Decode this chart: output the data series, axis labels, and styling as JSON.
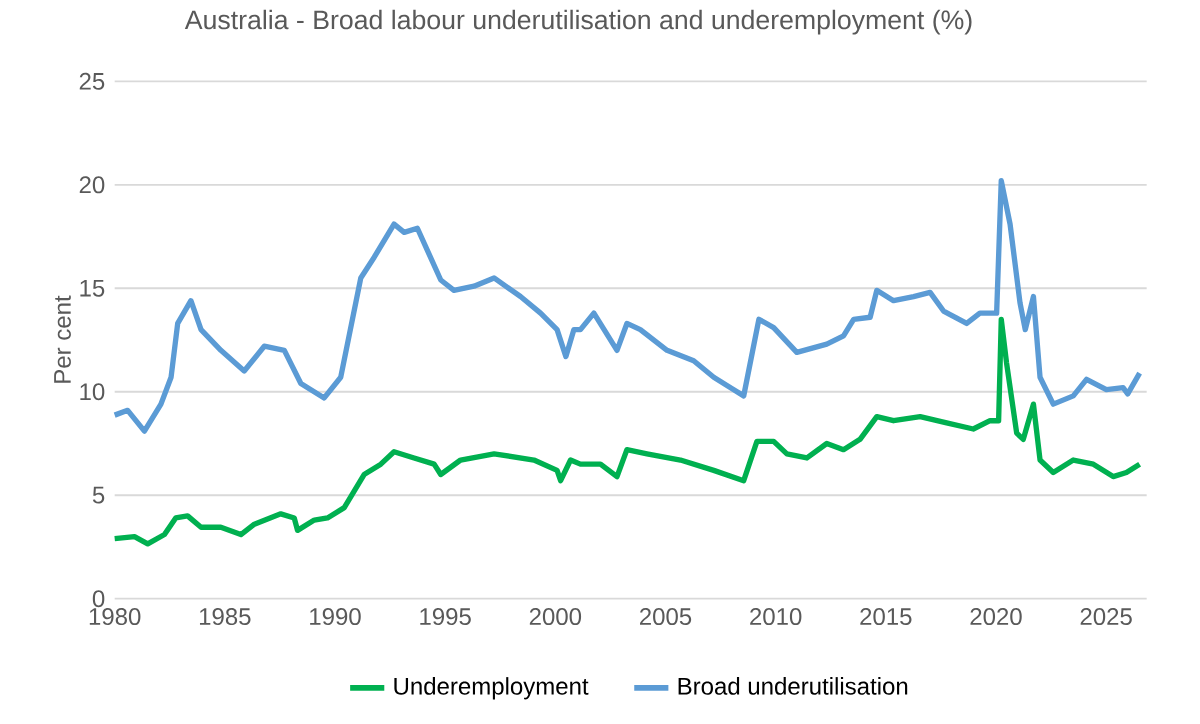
{
  "chart_data": {
    "type": "line",
    "title": "Australia - Broad labour underutilisation and underemployment (%)",
    "ylabel": "Per cent",
    "xlim": [
      1980,
      2026.84
    ],
    "xticks": [
      1980,
      1985,
      1990,
      1995,
      2000,
      2005,
      2010,
      2015,
      2020,
      2025
    ],
    "ylim": [
      0,
      25
    ],
    "yticks": [
      0,
      5,
      10,
      15,
      20,
      25
    ],
    "grid": "y",
    "legend": "bottom",
    "marker": "none",
    "line_style": "solid",
    "series": [
      {
        "name": "Underemployment",
        "color": "#00b050",
        "x": [
          1980.0,
          1980.9,
          1981.5,
          1982.26,
          1982.77,
          1983.31,
          1983.92,
          1984.82,
          1985.73,
          1986.34,
          1987.54,
          1988.15,
          1988.3,
          1989.06,
          1989.66,
          1990.42,
          1990.87,
          1991.32,
          1992.08,
          1992.68,
          1993.59,
          1994.5,
          1994.8,
          1995.7,
          1997.22,
          1999.03,
          2000.08,
          2000.24,
          2000.69,
          2001.14,
          2002.05,
          2002.8,
          2003.25,
          2004.16,
          2005.68,
          2007.19,
          2008.55,
          2009.15,
          2009.91,
          2010.51,
          2011.42,
          2012.32,
          2013.08,
          2013.83,
          2014.59,
          2015.35,
          2016.56,
          2017.76,
          2018.97,
          2019.73,
          2020.12,
          2020.24,
          2020.48,
          2020.94,
          2021.24,
          2021.7,
          2022.0,
          2022.6,
          2023.51,
          2024.42,
          2025.32,
          2025.92,
          2026.52
        ],
        "values": [
          2.9,
          3.0,
          2.65,
          3.1,
          3.9,
          4.0,
          3.45,
          3.45,
          3.1,
          3.6,
          4.1,
          3.9,
          3.3,
          3.8,
          3.9,
          4.4,
          5.2,
          6.0,
          6.5,
          7.1,
          6.8,
          6.5,
          6.0,
          6.7,
          7.0,
          6.7,
          6.2,
          5.7,
          6.7,
          6.5,
          6.5,
          5.9,
          7.2,
          7.0,
          6.7,
          6.2,
          5.7,
          7.6,
          7.6,
          7.0,
          6.8,
          7.5,
          7.2,
          7.7,
          8.8,
          8.6,
          8.8,
          8.5,
          8.2,
          8.6,
          8.6,
          13.5,
          11.4,
          8.0,
          7.7,
          9.4,
          6.7,
          6.1,
          6.7,
          6.5,
          5.9,
          6.1,
          6.5
        ]
      },
      {
        "name": "Broad underutilisation",
        "color": "#5b9bd5",
        "x": [
          1980.0,
          1980.59,
          1981.35,
          1982.1,
          1982.56,
          1982.86,
          1983.46,
          1983.92,
          1984.82,
          1985.88,
          1986.79,
          1987.7,
          1988.45,
          1989.51,
          1990.26,
          1991.17,
          1991.78,
          1992.68,
          1993.14,
          1993.74,
          1994.8,
          1995.4,
          1996.31,
          1997.22,
          1998.42,
          1999.33,
          2000.08,
          2000.48,
          2000.84,
          2001.14,
          2001.75,
          2002.8,
          2003.25,
          2003.86,
          2005.07,
          2006.28,
          2007.19,
          2008.1,
          2008.55,
          2009.24,
          2009.91,
          2010.96,
          2012.32,
          2013.08,
          2013.54,
          2014.29,
          2014.59,
          2015.35,
          2016.26,
          2017.01,
          2017.62,
          2018.67,
          2019.27,
          2020.03,
          2020.24,
          2020.64,
          2021.09,
          2021.33,
          2021.7,
          2022.0,
          2022.6,
          2023.51,
          2024.11,
          2025.01,
          2025.77,
          2025.98,
          2026.52
        ],
        "values": [
          8.87,
          9.1,
          8.1,
          9.4,
          10.7,
          13.3,
          14.4,
          13.0,
          12.0,
          11.0,
          12.2,
          12.0,
          10.4,
          9.7,
          10.7,
          15.5,
          16.5,
          18.1,
          17.7,
          17.9,
          15.4,
          14.9,
          15.1,
          15.5,
          14.6,
          13.8,
          13.0,
          11.7,
          13.0,
          13.0,
          13.8,
          12.0,
          13.3,
          13.0,
          12.0,
          11.5,
          10.7,
          10.1,
          9.8,
          13.5,
          13.1,
          11.9,
          12.3,
          12.7,
          13.5,
          13.6,
          14.9,
          14.4,
          14.6,
          14.8,
          13.9,
          13.3,
          13.8,
          13.8,
          20.2,
          18.1,
          14.3,
          13.0,
          14.6,
          10.7,
          9.4,
          9.8,
          10.6,
          10.1,
          10.2,
          9.9,
          10.9
        ]
      }
    ]
  }
}
